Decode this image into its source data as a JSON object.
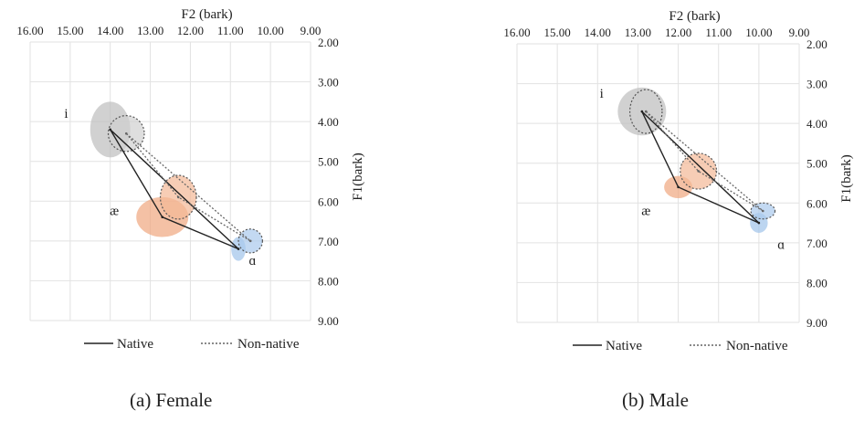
{
  "chart_data": [
    {
      "type": "scatter",
      "caption": "(a) Female",
      "xlabel": "F2 (bark)",
      "ylabel": "F1(bark)",
      "xlim": [
        16,
        9
      ],
      "ylim": [
        2,
        9
      ],
      "x_ticks": [
        "16.00",
        "15.00",
        "14.00",
        "13.00",
        "12.00",
        "11.00",
        "10.00",
        "9.00"
      ],
      "y_ticks": [
        "2.00",
        "3.00",
        "4.00",
        "5.00",
        "6.00",
        "7.00",
        "8.00",
        "9.00"
      ],
      "grid": true,
      "legend_position": "bottom",
      "legend": [
        "Native",
        "Non-native"
      ],
      "vowel_labels": [
        {
          "text": "i",
          "x": 15.1,
          "y": 3.9
        },
        {
          "text": "æ",
          "x": 13.9,
          "y": 6.35
        },
        {
          "text": "ɑ",
          "x": 10.45,
          "y": 7.6
        }
      ],
      "series": [
        {
          "name": "Native",
          "style": "solid",
          "color": "#222222",
          "vowels": [
            {
              "vowel": "i",
              "F2": 14.0,
              "F1": 4.2,
              "sd_F2": 0.5,
              "sd_F1": 0.7,
              "color": "#bdbdbd"
            },
            {
              "vowel": "æ",
              "F2": 12.7,
              "F1": 6.4,
              "sd_F2": 0.65,
              "sd_F1": 0.5,
              "color": "#f0a77f"
            },
            {
              "vowel": "ɑ",
              "F2": 10.8,
              "F1": 7.2,
              "sd_F2": 0.18,
              "sd_F1": 0.3,
              "color": "#9fc3ea"
            }
          ]
        },
        {
          "name": "Non-native",
          "style": "dotted",
          "color": "#666666",
          "vowels": [
            {
              "vowel": "i",
              "F2": 13.6,
              "F1": 4.3,
              "sd_F2": 0.45,
              "sd_F1": 0.45,
              "color": "#d0d0d0"
            },
            {
              "vowel": "æ",
              "F2": 12.3,
              "F1": 5.9,
              "sd_F2": 0.45,
              "sd_F1": 0.55,
              "color": "#f4b895"
            },
            {
              "vowel": "ɑ",
              "F2": 10.5,
              "F1": 7.0,
              "sd_F2": 0.3,
              "sd_F1": 0.3,
              "color": "#a9c9ec"
            }
          ]
        }
      ]
    },
    {
      "type": "scatter",
      "caption": "(b) Male",
      "xlabel": "F2 (bark)",
      "ylabel": "F1(bark)",
      "xlim": [
        16,
        9
      ],
      "ylim": [
        2,
        9
      ],
      "x_ticks": [
        "16.00",
        "15.00",
        "14.00",
        "13.00",
        "12.00",
        "11.00",
        "10.00",
        "9.00"
      ],
      "y_ticks": [
        "2.00",
        "3.00",
        "4.00",
        "5.00",
        "6.00",
        "7.00",
        "8.00",
        "9.00"
      ],
      "grid": true,
      "legend_position": "bottom",
      "legend": [
        "Native",
        "Non-native"
      ],
      "vowel_labels": [
        {
          "text": "i",
          "x": 13.9,
          "y": 3.35
        },
        {
          "text": "æ",
          "x": 12.8,
          "y": 6.3
        },
        {
          "text": "ɑ",
          "x": 9.45,
          "y": 7.15
        }
      ],
      "series": [
        {
          "name": "Native",
          "style": "solid",
          "color": "#222222",
          "vowels": [
            {
              "vowel": "i",
              "F2": 12.9,
              "F1": 3.7,
              "sd_F2": 0.6,
              "sd_F1": 0.6,
              "color": "#bdbdbd"
            },
            {
              "vowel": "æ",
              "F2": 12.0,
              "F1": 5.6,
              "sd_F2": 0.35,
              "sd_F1": 0.28,
              "color": "#f0a77f"
            },
            {
              "vowel": "ɑ",
              "F2": 10.0,
              "F1": 6.5,
              "sd_F2": 0.22,
              "sd_F1": 0.25,
              "color": "#9fc3ea"
            }
          ]
        },
        {
          "name": "Non-native",
          "style": "dotted",
          "color": "#666666",
          "vowels": [
            {
              "vowel": "i",
              "F2": 12.8,
              "F1": 3.7,
              "sd_F2": 0.4,
              "sd_F1": 0.55,
              "color": "#d0d0d0"
            },
            {
              "vowel": "æ",
              "F2": 11.5,
              "F1": 5.2,
              "sd_F2": 0.45,
              "sd_F1": 0.45,
              "color": "#f4b895"
            },
            {
              "vowel": "ɑ",
              "F2": 9.9,
              "F1": 6.2,
              "sd_F2": 0.3,
              "sd_F1": 0.2,
              "color": "#a9c9ec"
            }
          ]
        }
      ]
    }
  ]
}
